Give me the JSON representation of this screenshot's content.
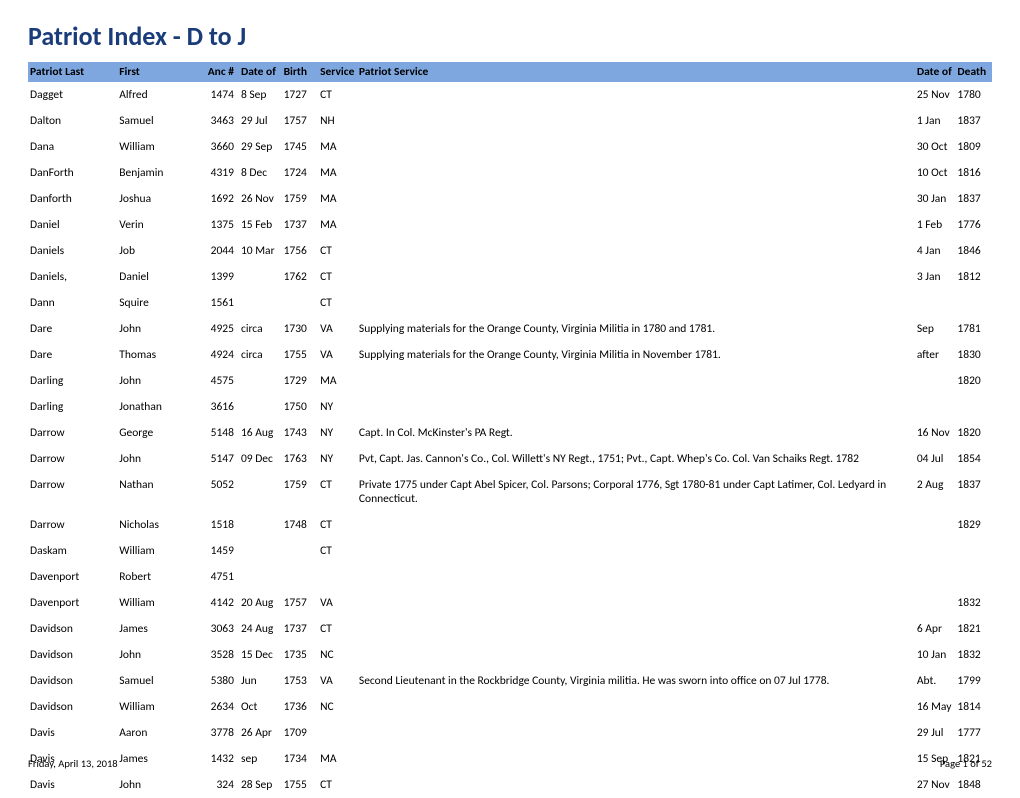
{
  "title": "Patriot Index - D to J",
  "header_bg_color": "#7ea7e0",
  "title_color": "#1a3c7a",
  "columns": {
    "last": "Patriot Last",
    "first": "First",
    "anc": "Anc #",
    "dob_top": "Date of",
    "dob_bot": "Birth",
    "svc": "Service",
    "psvc": "Patriot Service",
    "dod_top": "Date of",
    "dod_bot": "Death"
  },
  "rows": [
    {
      "last": "Dagget",
      "first": "Alfred",
      "anc": "1474",
      "dob1": "8 Sep",
      "dob2": "1727",
      "svc": "CT",
      "psvc": "",
      "dod1": "25 Nov",
      "dod2": "1780"
    },
    {
      "last": "Dalton",
      "first": "Samuel",
      "anc": "3463",
      "dob1": "29 Jul",
      "dob2": "1757",
      "svc": "NH",
      "psvc": "",
      "dod1": "1 Jan",
      "dod2": "1837"
    },
    {
      "last": "Dana",
      "first": "William",
      "anc": "3660",
      "dob1": "29 Sep",
      "dob2": "1745",
      "svc": "MA",
      "psvc": "",
      "dod1": "30 Oct",
      "dod2": "1809"
    },
    {
      "last": "DanForth",
      "first": "Benjamin",
      "anc": "4319",
      "dob1": "8 Dec",
      "dob2": "1724",
      "svc": "MA",
      "psvc": "",
      "dod1": "10 Oct",
      "dod2": "1816"
    },
    {
      "last": "Danforth",
      "first": "Joshua",
      "anc": "1692",
      "dob1": "26 Nov",
      "dob2": "1759",
      "svc": "MA",
      "psvc": "",
      "dod1": "30 Jan",
      "dod2": "1837"
    },
    {
      "last": "Daniel",
      "first": "Verin",
      "anc": "1375",
      "dob1": "15 Feb",
      "dob2": "1737",
      "svc": "MA",
      "psvc": "",
      "dod1": "1 Feb",
      "dod2": "1776"
    },
    {
      "last": "Daniels",
      "first": "Job",
      "anc": "2044",
      "dob1": "10 Mar",
      "dob2": "1756",
      "svc": "CT",
      "psvc": "",
      "dod1": "4 Jan",
      "dod2": "1846"
    },
    {
      "last": "Daniels,",
      "first": "Daniel",
      "anc": "1399",
      "dob1": "",
      "dob2": "1762",
      "svc": "CT",
      "psvc": "",
      "dod1": "3 Jan",
      "dod2": "1812"
    },
    {
      "last": "Dann",
      "first": "Squire",
      "anc": "1561",
      "dob1": "",
      "dob2": "",
      "svc": "CT",
      "psvc": "",
      "dod1": "",
      "dod2": ""
    },
    {
      "last": "Dare",
      "first": "John",
      "anc": "4925",
      "dob1": "circa",
      "dob2": "1730",
      "svc": "VA",
      "psvc": "Supplying materials for the Orange County, Virginia Militia in 1780 and 1781.",
      "dod1": "Sep",
      "dod2": "1781"
    },
    {
      "last": "Dare",
      "first": "Thomas",
      "anc": "4924",
      "dob1": "circa",
      "dob2": "1755",
      "svc": "VA",
      "psvc": "Supplying materials for the Orange County, Virginia Militia in November 1781.",
      "dod1": "after",
      "dod2": "1830"
    },
    {
      "last": "Darling",
      "first": "John",
      "anc": "4575",
      "dob1": "",
      "dob2": "1729",
      "svc": "MA",
      "psvc": "",
      "dod1": "",
      "dod2": "1820"
    },
    {
      "last": "Darling",
      "first": "Jonathan",
      "anc": "3616",
      "dob1": "",
      "dob2": "1750",
      "svc": "NY",
      "psvc": "",
      "dod1": "",
      "dod2": ""
    },
    {
      "last": "Darrow",
      "first": "George",
      "anc": "5148",
      "dob1": "16 Aug",
      "dob2": "1743",
      "svc": "NY",
      "psvc": "Capt. In Col. McKinster's PA Regt.",
      "dod1": "16 Nov",
      "dod2": "1820"
    },
    {
      "last": "Darrow",
      "first": "John",
      "anc": "5147",
      "dob1": "09 Dec",
      "dob2": "1763",
      "svc": "NY",
      "psvc": "Pvt, Capt. Jas. Cannon's Co., Col. Willett's NY Regt., 1751; Pvt., Capt. Whep's Co. Col. Van Schaiks Regt. 1782",
      "dod1": "04 Jul",
      "dod2": "1854"
    },
    {
      "last": "Darrow",
      "first": "Nathan",
      "anc": "5052",
      "dob1": "",
      "dob2": "1759",
      "svc": "CT",
      "psvc": "Private 1775 under Capt Abel Spicer, Col. Parsons; Corporal 1776, Sgt 1780-81 under Capt Latimer, Col. Ledyard in Connecticut.",
      "dod1": "2 Aug",
      "dod2": "1837"
    },
    {
      "last": "Darrow",
      "first": "Nicholas",
      "anc": "1518",
      "dob1": "",
      "dob2": "1748",
      "svc": "CT",
      "psvc": "",
      "dod1": "",
      "dod2": "1829"
    },
    {
      "last": "Daskam",
      "first": "William",
      "anc": "1459",
      "dob1": "",
      "dob2": "",
      "svc": "CT",
      "psvc": "",
      "dod1": "",
      "dod2": ""
    },
    {
      "last": "Davenport",
      "first": "Robert",
      "anc": "4751",
      "dob1": "",
      "dob2": "",
      "svc": "",
      "psvc": "",
      "dod1": "",
      "dod2": ""
    },
    {
      "last": "Davenport",
      "first": "William",
      "anc": "4142",
      "dob1": "20 Aug",
      "dob2": "1757",
      "svc": "VA",
      "psvc": "",
      "dod1": "",
      "dod2": "1832"
    },
    {
      "last": "Davidson",
      "first": "James",
      "anc": "3063",
      "dob1": "24 Aug",
      "dob2": "1737",
      "svc": "CT",
      "psvc": "",
      "dod1": "6 Apr",
      "dod2": "1821"
    },
    {
      "last": "Davidson",
      "first": "John",
      "anc": "3528",
      "dob1": "15 Dec",
      "dob2": "1735",
      "svc": "NC",
      "psvc": "",
      "dod1": "10 Jan",
      "dod2": "1832"
    },
    {
      "last": "Davidson",
      "first": "Samuel",
      "anc": "5380",
      "dob1": "Jun",
      "dob2": "1753",
      "svc": "VA",
      "psvc": "Second Lieutenant in the Rockbridge County, Virginia militia.  He was sworn into office on 07 Jul 1778.",
      "dod1": "Abt.",
      "dod2": "1799"
    },
    {
      "last": "Davidson",
      "first": "William",
      "anc": "2634",
      "dob1": "Oct",
      "dob2": "1736",
      "svc": "NC",
      "psvc": "",
      "dod1": "16 May",
      "dod2": "1814"
    },
    {
      "last": "Davis",
      "first": "Aaron",
      "anc": "3778",
      "dob1": "26 Apr",
      "dob2": "1709",
      "svc": "",
      "psvc": "",
      "dod1": "29 Jul",
      "dod2": "1777"
    },
    {
      "last": "Davis",
      "first": "James",
      "anc": "1432",
      "dob1": "sep",
      "dob2": "1734",
      "svc": "MA",
      "psvc": "",
      "dod1": "15 Sep",
      "dod2": "1821"
    },
    {
      "last": "Davis",
      "first": "John",
      "anc": "324",
      "dob1": "28 Sep",
      "dob2": "1755",
      "svc": "CT",
      "psvc": "",
      "dod1": "27 Nov",
      "dod2": "1848"
    }
  ],
  "footer": {
    "date": "Friday, April 13, 2018",
    "page": "Page 1 of 52"
  }
}
